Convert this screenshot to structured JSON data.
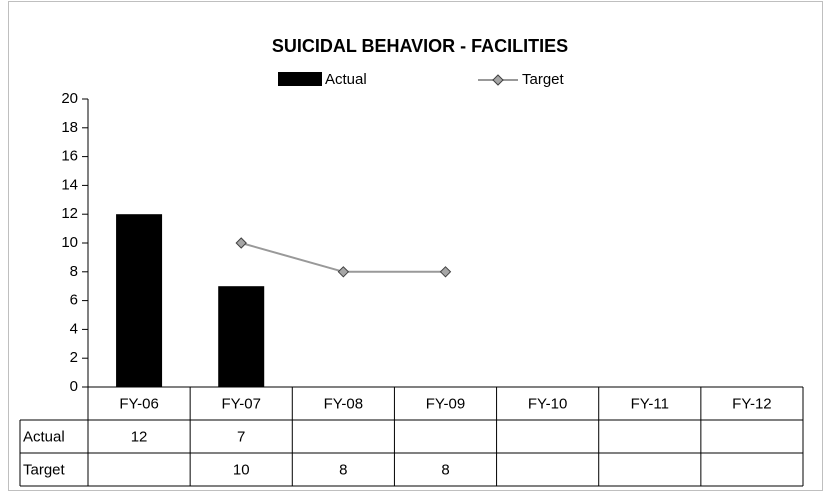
{
  "chart_data": {
    "type": "bar_line_table",
    "title": "SUICIDAL BEHAVIOR - FACILITIES",
    "categories": [
      "FY-06",
      "FY-07",
      "FY-08",
      "FY-09",
      "FY-10",
      "FY-11",
      "FY-12"
    ],
    "series": [
      {
        "name": "Actual",
        "type": "bar",
        "color": "#000000",
        "values": [
          12,
          7,
          null,
          null,
          null,
          null,
          null
        ]
      },
      {
        "name": "Target",
        "type": "line",
        "color": "#999999",
        "marker_color": "#a6a6a6",
        "values": [
          null,
          10,
          8,
          8,
          null,
          null,
          null
        ]
      }
    ],
    "ylim": [
      0,
      20
    ],
    "yticks": [
      0,
      2,
      4,
      6,
      8,
      10,
      12,
      14,
      16,
      18,
      20
    ],
    "legend": "top",
    "data_table": true
  }
}
